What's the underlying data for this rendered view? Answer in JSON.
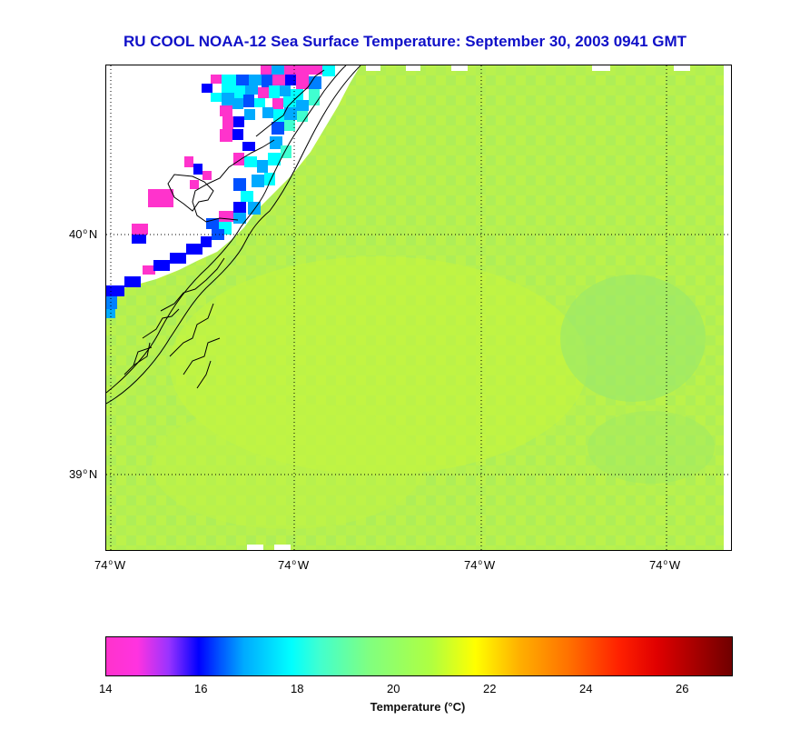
{
  "title": "RU COOL  NOAA-12  Sea Surface Temperature:  September 30, 2003 0941 GMT",
  "lat_labels": [
    {
      "value": "40",
      "unit": "N"
    },
    {
      "value": "39",
      "unit": "N"
    }
  ],
  "lon_labels": [
    {
      "value": "74",
      "unit": "W"
    },
    {
      "value": "74",
      "unit": "W"
    },
    {
      "value": "74",
      "unit": "W"
    },
    {
      "value": "74",
      "unit": "W"
    }
  ],
  "colorbar": {
    "ticks": [
      "14",
      "16",
      "18",
      "20",
      "22",
      "24",
      "26"
    ],
    "label": "Temperature (°C)",
    "range": [
      14,
      27
    ]
  },
  "colors": {
    "title": "#1010c8",
    "ocean_base": "#b4f050",
    "land": "#ffffff",
    "coastline": "#000000"
  }
}
